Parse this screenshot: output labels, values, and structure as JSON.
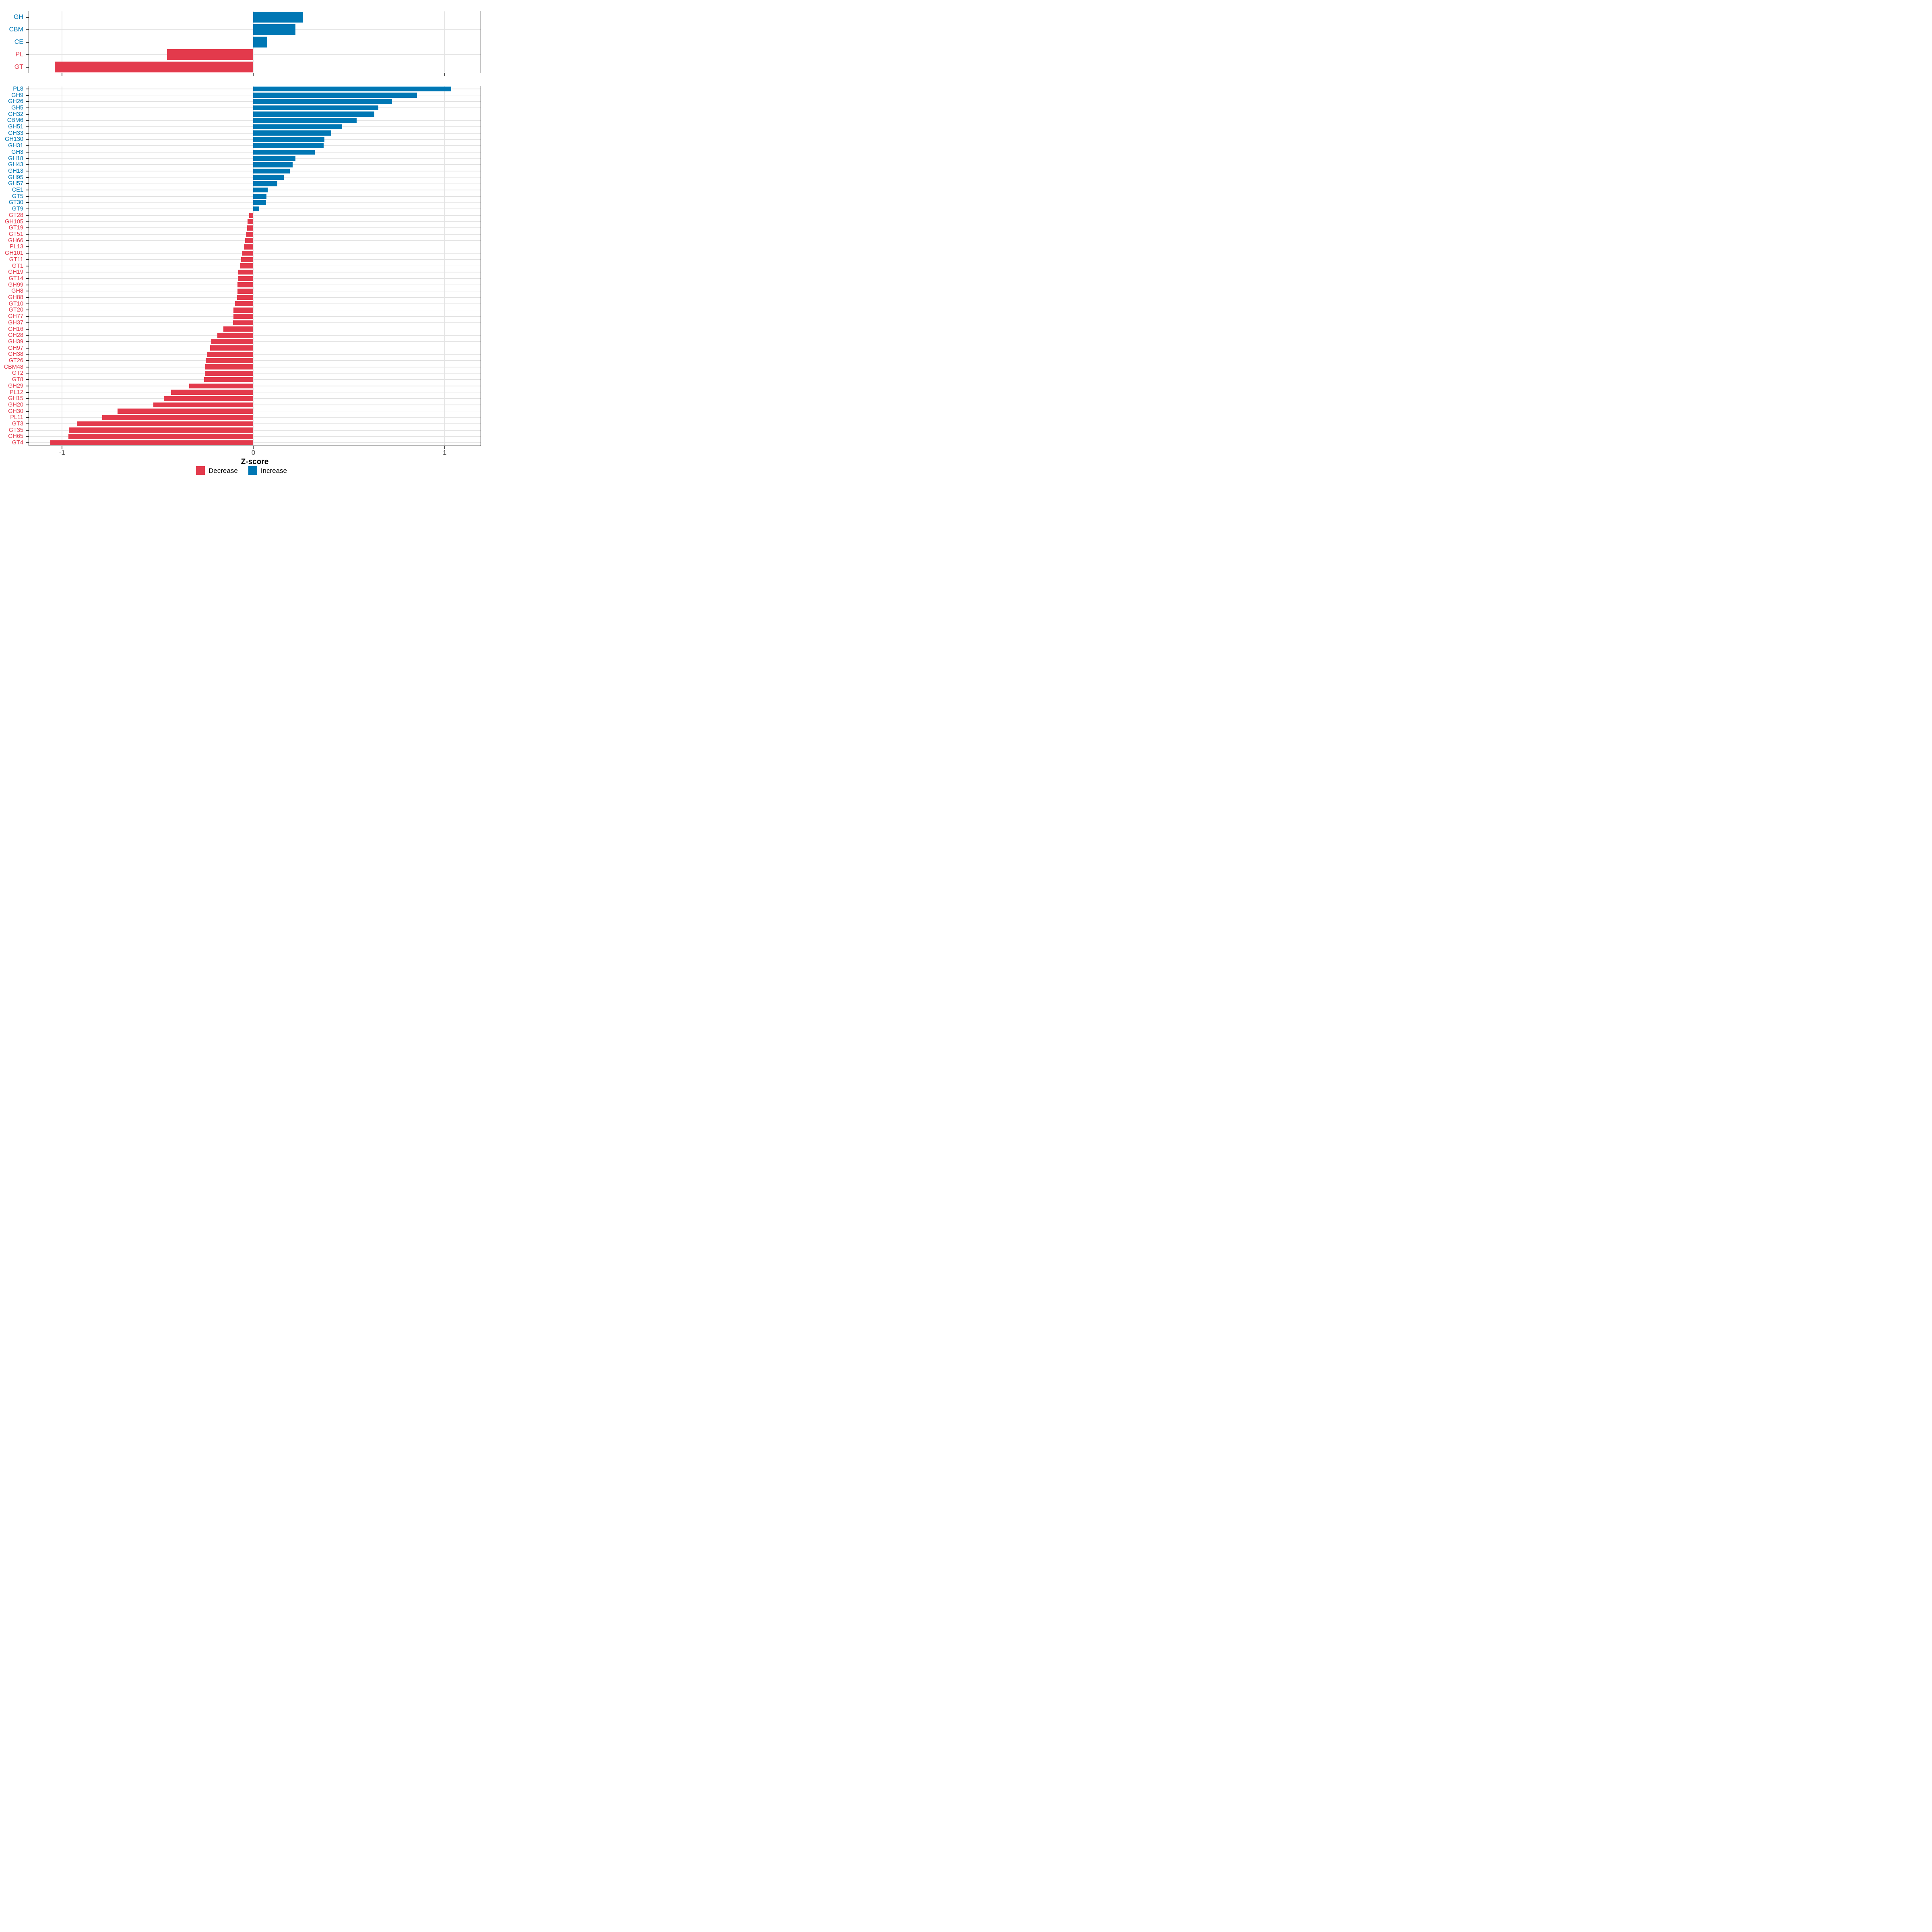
{
  "axis": {
    "xlabel": "Z-score",
    "xlim": [
      -1.175,
      1.19
    ],
    "ticks": [
      -1,
      0,
      1
    ],
    "tick_labels": [
      "-1",
      "0",
      "1"
    ]
  },
  "colors": {
    "increase": "#0077B4",
    "decrease": "#E33A4C",
    "grid": "#E3E3E3",
    "panel_border": "#1A1A1A",
    "tick_mark": "#333333",
    "tick_label": "#4D4D4D",
    "background": "#FFFFFF"
  },
  "legend": {
    "position": "bottom",
    "items": [
      {
        "label": "Decrease",
        "color": "#E33A4C"
      },
      {
        "label": "Increase",
        "color": "#0077B4"
      }
    ]
  },
  "chart_data": [
    {
      "type": "bar",
      "orientation": "horizontal",
      "panel": "cazyme-classes",
      "title": "",
      "xlabel": "Z-score",
      "xlim": [
        -1.175,
        1.19
      ],
      "xticks": [
        -1,
        0,
        1
      ],
      "grid": true,
      "categories": [
        "GH",
        "CBM",
        "CE",
        "PL",
        "GT"
      ],
      "values": [
        0.26,
        0.22,
        0.073,
        -0.452,
        -1.038
      ]
    },
    {
      "type": "bar",
      "orientation": "horizontal",
      "panel": "cazyme-families",
      "title": "",
      "xlabel": "Z-score",
      "xlim": [
        -1.175,
        1.19
      ],
      "xticks": [
        -1,
        0,
        1
      ],
      "grid": true,
      "categories": [
        "PL8",
        "GH9",
        "GH26",
        "GH5",
        "GH32",
        "CBM6",
        "GH51",
        "GH33",
        "GH130",
        "GH31",
        "GH3",
        "GH18",
        "GH43",
        "GH13",
        "GH95",
        "GH57",
        "CE1",
        "GT5",
        "GT30",
        "GT9",
        "GT28",
        "GH105",
        "GT19",
        "GT51",
        "GH66",
        "PL13",
        "GH101",
        "GT11",
        "GT1",
        "GH19",
        "GT14",
        "GH99",
        "GH8",
        "GH88",
        "GT10",
        "GT20",
        "GH77",
        "GH37",
        "GH16",
        "GH28",
        "GH39",
        "GH97",
        "GH38",
        "GT26",
        "CBM48",
        "GT2",
        "GT8",
        "GH29",
        "PL12",
        "GH15",
        "GH20",
        "GH30",
        "PL11",
        "GT3",
        "GT35",
        "GH65",
        "GT4"
      ],
      "values": [
        1.034,
        0.855,
        0.724,
        0.654,
        0.633,
        0.539,
        0.465,
        0.407,
        0.372,
        0.368,
        0.322,
        0.219,
        0.206,
        0.191,
        0.158,
        0.125,
        0.074,
        0.069,
        0.066,
        0.03,
        -0.022,
        -0.03,
        -0.032,
        -0.039,
        -0.043,
        -0.05,
        -0.06,
        -0.065,
        -0.068,
        -0.078,
        -0.081,
        -0.083,
        -0.084,
        -0.086,
        -0.095,
        -0.104,
        -0.105,
        -0.107,
        -0.156,
        -0.188,
        -0.219,
        -0.227,
        -0.242,
        -0.25,
        -0.252,
        -0.254,
        -0.258,
        -0.336,
        -0.43,
        -0.468,
        -0.522,
        -0.711,
        -0.79,
        -0.922,
        -0.964,
        -0.966,
        -1.061
      ]
    }
  ]
}
